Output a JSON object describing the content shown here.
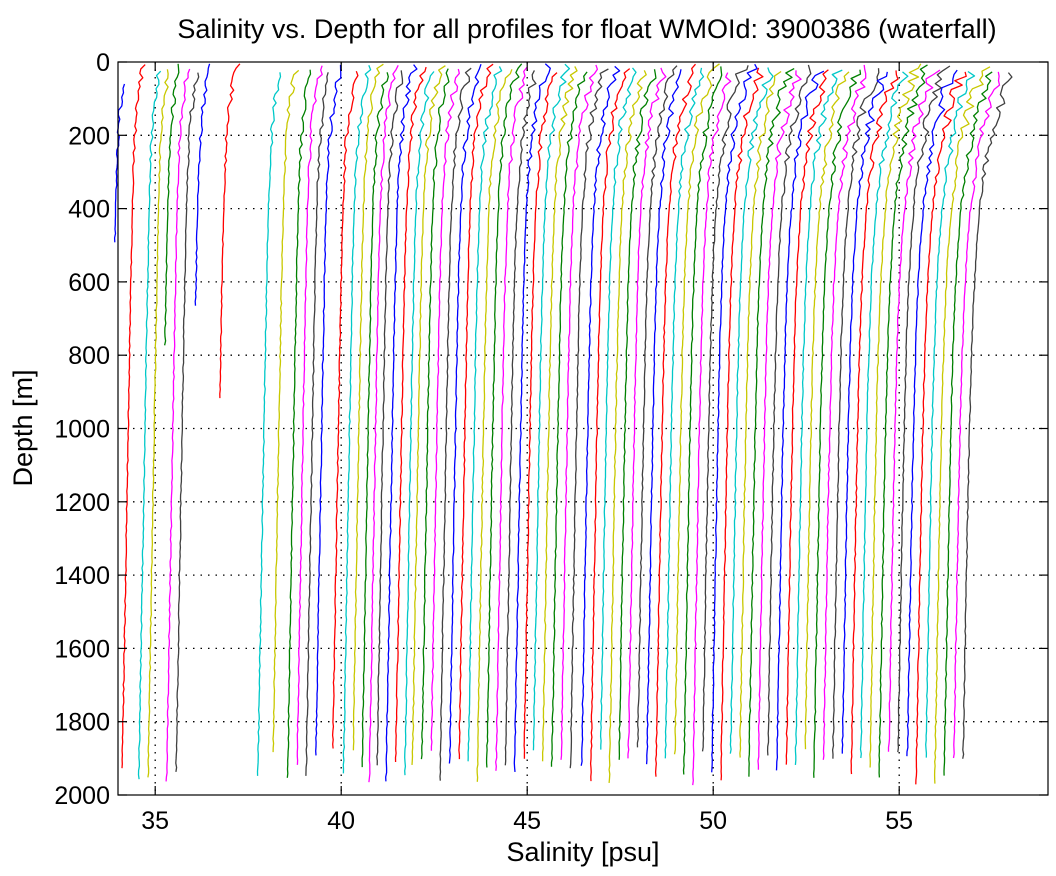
{
  "chart_data": {
    "type": "line",
    "title": "Salinity vs. Depth for all profiles for float WMOId: 3900386 (waterfall)",
    "xlabel": "Salinity [psu]",
    "ylabel": "Depth [m]",
    "xlim": [
      34,
      59
    ],
    "ylim": [
      0,
      2000
    ],
    "y_reversed": true,
    "xticks": [
      35,
      40,
      45,
      50,
      55
    ],
    "yticks": [
      0,
      200,
      400,
      600,
      800,
      1000,
      1200,
      1400,
      1600,
      1800,
      2000
    ],
    "grid": true,
    "legend": "none",
    "color_cycle": [
      "#0000ff",
      "#ff0000",
      "#00c8c8",
      "#c8c800",
      "#008000",
      "#ff00ff",
      "#404040"
    ],
    "profile_offsets": [
      34.3,
      34.75,
      35.2,
      35.45,
      35.7,
      35.95,
      36.2,
      36.5,
      37.2,
      38.4,
      38.8,
      39.2,
      39.45,
      39.7,
      39.95,
      40.4,
      40.7,
      40.95,
      41.2,
      41.4,
      41.6,
      41.85,
      42.1,
      42.35,
      42.55,
      42.8,
      43.05,
      43.3,
      43.55,
      43.8,
      44.05,
      44.3,
      44.55,
      44.8,
      45.05,
      45.3,
      45.55,
      45.8,
      46.05,
      46.3,
      46.55,
      46.8,
      47.1,
      47.35,
      47.6,
      47.85,
      48.1,
      48.35,
      48.6,
      48.85,
      49.1,
      49.35,
      49.6,
      49.85,
      50.1,
      50.35,
      50.6,
      50.85,
      51.1,
      51.35,
      51.6,
      51.85,
      52.1,
      52.35,
      52.6,
      52.85,
      53.1,
      53.35,
      53.6,
      53.85,
      54.1,
      54.35,
      54.6,
      54.85,
      55.1,
      55.35,
      55.6,
      55.85,
      56.1,
      56.35,
      56.6,
      56.85,
      57.1,
      57.35
    ]
  }
}
